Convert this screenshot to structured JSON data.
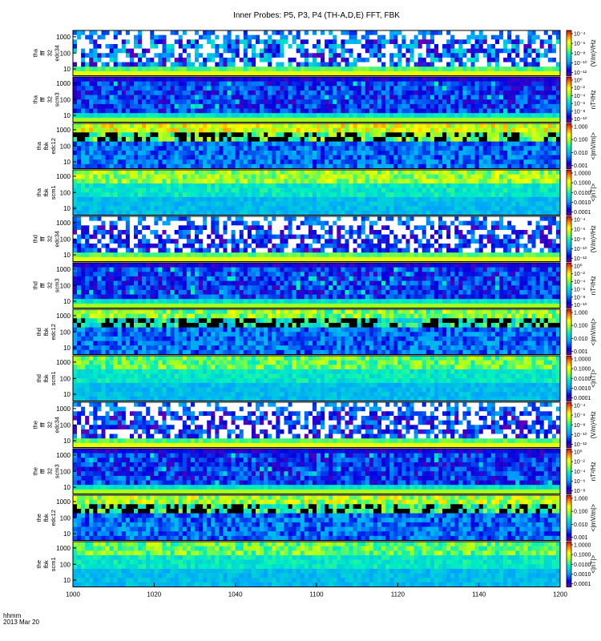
{
  "title": "Inner Probes: P5, P3, P4 (TH-A,D,E) FFT, FBK",
  "footer": {
    "line1": "hhmm",
    "line2": "2013 Mar 20"
  },
  "chart_data": {
    "type": "heatmap",
    "x_ticks": [
      "1000",
      "1020",
      "1040",
      "1100",
      "1120",
      "1140",
      "1200"
    ],
    "panels": [
      {
        "label": [
          "tha",
          "fff",
          "32",
          "edc34"
        ],
        "yticks": [
          "1000",
          "100",
          "10"
        ],
        "unit": "(V/m)²/Hz",
        "cbar": [
          "10⁻⁴",
          "10⁻⁶",
          "10⁻⁸",
          "10⁻¹⁰",
          "10⁻¹²"
        ],
        "kind": "fff_e",
        "level": 0.35
      },
      {
        "label": [
          "tha",
          "fff",
          "32",
          "scm3"
        ],
        "yticks": [
          "1000",
          "100",
          "10"
        ],
        "unit": "nT²/Hz",
        "cbar": [
          "10⁰",
          "10⁻²",
          "10⁻⁴",
          "10⁻⁶",
          "10⁻⁸",
          "10⁻¹⁰"
        ],
        "kind": "fff_b",
        "level": 0.25
      },
      {
        "label": [
          "tha",
          "fbk",
          "edc12"
        ],
        "yticks": [
          "1000",
          "100",
          "10"
        ],
        "unit": "<|mV/m|>",
        "cbar": [
          "1.000",
          "0.100",
          "0.010",
          "0.001"
        ],
        "kind": "fbk_e",
        "level": 0.55
      },
      {
        "label": [
          "tha",
          "fbk",
          "scm1"
        ],
        "yticks": [
          "1000",
          "100",
          "10"
        ],
        "unit": "<|nT|>",
        "cbar": [
          "1.0000",
          "0.1000",
          "0.0100",
          "0.0010",
          "0.0001"
        ],
        "kind": "fbk_b",
        "level": 0.5
      },
      {
        "label": [
          "thd",
          "fff",
          "32",
          "edc34"
        ],
        "yticks": [
          "1000",
          "100",
          "10"
        ],
        "unit": "(V/m)²/Hz",
        "cbar": [
          "10⁻⁴",
          "10⁻⁶",
          "10⁻⁸",
          "10⁻¹⁰",
          "10⁻¹²"
        ],
        "kind": "fff_e",
        "level": 0.2
      },
      {
        "label": [
          "thd",
          "fff",
          "32",
          "scm3"
        ],
        "yticks": [
          "1000",
          "100",
          "10"
        ],
        "unit": "nT²/Hz",
        "cbar": [
          "10⁰",
          "10⁻²",
          "10⁻⁴",
          "10⁻⁶",
          "10⁻⁸",
          "10⁻¹⁰"
        ],
        "kind": "fff_b",
        "level": 0.25
      },
      {
        "label": [
          "thd",
          "fbk",
          "edc12"
        ],
        "yticks": [
          "1000",
          "100",
          "10"
        ],
        "unit": "<|mV/m|>",
        "cbar": [
          "1.000",
          "0.100",
          "0.010",
          "0.001"
        ],
        "kind": "fbk_e",
        "level": 0.45
      },
      {
        "label": [
          "thd",
          "fbk",
          "scm1"
        ],
        "yticks": [
          "1000",
          "100",
          "10"
        ],
        "unit": "<|nT|>",
        "cbar": [
          "1.0000",
          "0.1000",
          "0.0100",
          "0.0010",
          "0.0001"
        ],
        "kind": "fbk_b",
        "level": 0.45
      },
      {
        "label": [
          "the",
          "fff",
          "32",
          "edc34"
        ],
        "yticks": [
          "1000",
          "100",
          "10"
        ],
        "unit": "(V/m)²/Hz",
        "cbar": [
          "10⁻⁴",
          "10⁻⁶",
          "10⁻⁸",
          "10⁻¹⁰",
          "10⁻¹²"
        ],
        "kind": "fff_e",
        "level": 0.2
      },
      {
        "label": [
          "the",
          "fff",
          "32",
          "scm3"
        ],
        "yticks": [
          "1000",
          "100",
          "10"
        ],
        "unit": "nT²/Hz",
        "cbar": [
          "10⁰",
          "10⁻²",
          "10⁻⁴",
          "10⁻⁶",
          "10⁻⁸"
        ],
        "kind": "fff_b",
        "level": 0.25
      },
      {
        "label": [
          "the",
          "fbk",
          "edc12"
        ],
        "yticks": [
          "1000",
          "100",
          "10"
        ],
        "unit": "<|mV/m|>",
        "cbar": [
          "1.000",
          "0.100",
          "0.010",
          "0.001"
        ],
        "kind": "fbk_e",
        "level": 0.5
      },
      {
        "label": [
          "the",
          "fbk",
          "scm1"
        ],
        "yticks": [
          "1000",
          "100",
          "10"
        ],
        "unit": "<|nT|>",
        "cbar": [
          "1.0000",
          "0.1000",
          "0.0100",
          "0.0010",
          "0.0001"
        ],
        "kind": "fbk_b",
        "level": 0.45
      }
    ]
  }
}
